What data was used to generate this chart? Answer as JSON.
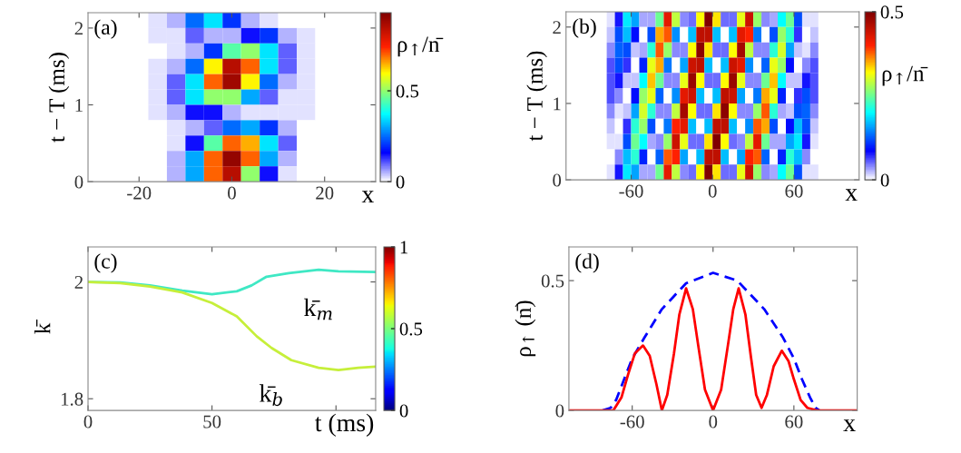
{
  "chart_data": [
    {
      "type": "heatmap",
      "annotations": [
        "(a)"
      ],
      "xlabel": "x",
      "ylabel": "t − T (ms)",
      "clabel": "ρ$_{↑}$/n̄",
      "x": [
        -28,
        -24,
        -20,
        -16,
        -12,
        -8,
        -4,
        0,
        4,
        8,
        12,
        16,
        20,
        24,
        28
      ],
      "y": [
        2.1,
        1.9,
        1.7,
        1.5,
        1.3,
        1.1,
        0.9,
        0.7,
        0.5,
        0.3,
        0.1
      ],
      "cells": [
        [
          0,
          0,
          0,
          0.02,
          0.05,
          0.25,
          0.35,
          0.2,
          0.05,
          0.02,
          0,
          0,
          0,
          0,
          0
        ],
        [
          0,
          0,
          0,
          0.02,
          0.02,
          0.1,
          0.05,
          0.05,
          0.15,
          0.2,
          0.05,
          0.02,
          0,
          0,
          0
        ],
        [
          0,
          0,
          0,
          0,
          0.02,
          0.05,
          0.2,
          0.45,
          0.5,
          0.35,
          0.1,
          0.02,
          0,
          0,
          0
        ],
        [
          0,
          0,
          0,
          0.02,
          0.05,
          0.25,
          0.6,
          0.85,
          0.7,
          0.35,
          0.1,
          0.02,
          0,
          0,
          0
        ],
        [
          0,
          0,
          0,
          0.02,
          0.1,
          0.35,
          0.7,
          0.88,
          0.6,
          0.25,
          0.05,
          0.02,
          0,
          0,
          0
        ],
        [
          0,
          0,
          0,
          0.02,
          0.1,
          0.35,
          0.5,
          0.5,
          0.3,
          0.1,
          0.02,
          0.02,
          0,
          0,
          0
        ],
        [
          0,
          0,
          0,
          0.02,
          0.05,
          0.15,
          0.15,
          0.05,
          0.02,
          0.02,
          0.02,
          0.02,
          0,
          0,
          0
        ],
        [
          0,
          0,
          0,
          0,
          0.02,
          0.05,
          0.1,
          0.25,
          0.3,
          0.2,
          0.05,
          0,
          0,
          0,
          0
        ],
        [
          0,
          0,
          0,
          0,
          0.02,
          0.15,
          0.45,
          0.7,
          0.65,
          0.35,
          0.1,
          0,
          0,
          0,
          0
        ],
        [
          0,
          0,
          0,
          0,
          0.05,
          0.3,
          0.7,
          0.9,
          0.7,
          0.3,
          0.05,
          0,
          0,
          0,
          0
        ],
        [
          0,
          0,
          0,
          0,
          0.05,
          0.3,
          0.7,
          0.85,
          0.5,
          0.15,
          0.02,
          0,
          0,
          0,
          0
        ]
      ],
      "xlim": [
        -31,
        31
      ],
      "xticks": [
        -20,
        0,
        20
      ],
      "ylim": [
        0,
        2.2
      ],
      "yticks": [
        0,
        1,
        2
      ],
      "clim": [
        0,
        0.93
      ],
      "cticks": [
        0,
        0.5
      ]
    },
    {
      "type": "heatmap",
      "annotations": [
        "(b)"
      ],
      "xlabel": "x",
      "ylabel": "t − T (ms)",
      "clabel": "ρ$_{↑}$/n̄",
      "x": [
        -105,
        -99,
        -93,
        -87,
        -81,
        -75,
        -69,
        -63,
        -57,
        -51,
        -45,
        -39,
        -33,
        -27,
        -21,
        -15,
        -9,
        -3,
        3,
        9,
        15,
        21,
        27,
        33,
        39,
        45,
        51,
        57,
        63,
        69,
        75,
        81,
        87,
        93,
        99,
        105
      ],
      "y": [
        2.1,
        1.9,
        1.7,
        1.5,
        1.3,
        1.1,
        0.9,
        0.7,
        0.5,
        0.3,
        0.1
      ],
      "cells": [
        [
          0,
          0,
          0,
          0,
          0,
          0.01,
          0.08,
          0.19,
          0.16,
          0.03,
          0.03,
          0.25,
          0.42,
          0.29,
          0.04,
          0.05,
          0.32,
          0.5,
          0.33,
          0.05,
          0.05,
          0.31,
          0.44,
          0.27,
          0.04,
          0.03,
          0.2,
          0.25,
          0.12,
          0.01,
          0.01,
          0,
          0,
          0,
          0,
          0
        ],
        [
          0,
          0,
          0,
          0,
          0,
          0.02,
          0.12,
          0.17,
          0.09,
          0,
          0.12,
          0.35,
          0.38,
          0.15,
          0,
          0.17,
          0.45,
          0.45,
          0.17,
          0,
          0.17,
          0.42,
          0.4,
          0.14,
          0,
          0.12,
          0.27,
          0.22,
          0.07,
          0,
          0.02,
          0,
          0,
          0,
          0,
          0
        ],
        [
          0,
          0,
          0,
          0,
          0,
          0.04,
          0.13,
          0.12,
          0.02,
          0.03,
          0.22,
          0.38,
          0.27,
          0.04,
          0.04,
          0.32,
          0.49,
          0.33,
          0.05,
          0.05,
          0.32,
          0.47,
          0.29,
          0.04,
          0.04,
          0.22,
          0.3,
          0.16,
          0.02,
          0.01,
          0.04,
          0,
          0,
          0,
          0,
          0
        ],
        [
          0,
          0,
          0,
          0,
          0,
          0.06,
          0.12,
          0.07,
          0,
          0.1,
          0.31,
          0.35,
          0.14,
          0,
          0.16,
          0.44,
          0.45,
          0.17,
          0,
          0.17,
          0.44,
          0.42,
          0.15,
          0,
          0.13,
          0.31,
          0.27,
          0.09,
          0,
          0.04,
          0.06,
          0,
          0,
          0,
          0,
          0
        ],
        [
          0,
          0,
          0,
          0,
          0,
          0.06,
          0.08,
          0.02,
          0.02,
          0.2,
          0.34,
          0.25,
          0.04,
          0.04,
          0.31,
          0.48,
          0.32,
          0.05,
          0.05,
          0.32,
          0.48,
          0.31,
          0.04,
          0.04,
          0.25,
          0.34,
          0.2,
          0.02,
          0.02,
          0.08,
          0.06,
          0,
          0,
          0,
          0,
          0
        ],
        [
          0,
          0,
          0,
          0,
          0,
          0.06,
          0.04,
          0,
          0.09,
          0.27,
          0.31,
          0.13,
          0,
          0.15,
          0.42,
          0.44,
          0.17,
          0,
          0.17,
          0.45,
          0.44,
          0.16,
          0,
          0.14,
          0.35,
          0.31,
          0.1,
          0,
          0.07,
          0.12,
          0.06,
          0,
          0,
          0,
          0,
          0
        ],
        [
          0,
          0,
          0,
          0,
          0,
          0.04,
          0.01,
          0.02,
          0.16,
          0.3,
          0.22,
          0.04,
          0.04,
          0.29,
          0.47,
          0.32,
          0.05,
          0.05,
          0.33,
          0.49,
          0.32,
          0.04,
          0.04,
          0.27,
          0.38,
          0.22,
          0.03,
          0.02,
          0.12,
          0.13,
          0.04,
          0,
          0,
          0,
          0,
          0
        ],
        [
          0,
          0,
          0,
          0,
          0,
          0.02,
          0,
          0.07,
          0.22,
          0.27,
          0.12,
          0,
          0.14,
          0.4,
          0.42,
          0.17,
          0,
          0.17,
          0.45,
          0.45,
          0.17,
          0,
          0.15,
          0.38,
          0.35,
          0.12,
          0,
          0.09,
          0.17,
          0.12,
          0.02,
          0,
          0,
          0,
          0,
          0
        ],
        [
          0,
          0,
          0,
          0,
          0,
          0.01,
          0.01,
          0.12,
          0.25,
          0.2,
          0.03,
          0.04,
          0.27,
          0.44,
          0.31,
          0.05,
          0.05,
          0.33,
          0.5,
          0.32,
          0.05,
          0.04,
          0.29,
          0.42,
          0.25,
          0.03,
          0.03,
          0.16,
          0.19,
          0.08,
          0.01,
          0,
          0,
          0,
          0,
          0
        ],
        [
          0,
          0,
          0,
          0,
          0,
          0,
          0.04,
          0.17,
          0.22,
          0.1,
          0,
          0.13,
          0.38,
          0.4,
          0.16,
          0,
          0.17,
          0.45,
          0.45,
          0.17,
          0,
          0.16,
          0.4,
          0.38,
          0.13,
          0,
          0.1,
          0.22,
          0.17,
          0.04,
          0,
          0,
          0,
          0,
          0,
          0
        ],
        [
          0,
          0,
          0,
          0,
          0,
          0.01,
          0.08,
          0.19,
          0.16,
          0.03,
          0.03,
          0.25,
          0.42,
          0.29,
          0.04,
          0.05,
          0.32,
          0.5,
          0.33,
          0.05,
          0.05,
          0.31,
          0.44,
          0.27,
          0.04,
          0.03,
          0.2,
          0.25,
          0.12,
          0.01,
          0.01,
          0,
          0,
          0,
          0,
          0
        ]
      ],
      "xlim": [
        -108,
        108
      ],
      "xticks": [
        -60,
        0,
        60
      ],
      "ylim": [
        0,
        2.2
      ],
      "yticks": [
        0,
        1,
        2
      ],
      "clim": [
        0,
        0.5
      ],
      "cticks": [
        0,
        0.5
      ]
    },
    {
      "type": "line",
      "xlabel": "t (ms)",
      "ylabel": "k̄",
      "annotations": [
        "(c)"
      ],
      "series": [
        {
          "name": "k̄$_{m}$",
          "color": "#3fe8c4",
          "x": [
            0,
            13,
            25,
            38,
            50,
            60,
            66,
            72,
            81,
            93,
            101,
            116
          ],
          "values": [
            2.0,
            1.999,
            1.994,
            1.985,
            1.979,
            1.984,
            1.994,
            2.009,
            2.015,
            2.021,
            2.018,
            2.017
          ]
        },
        {
          "name": "k̄$_{b}$",
          "color": "#c6ef3a",
          "x": [
            0,
            13,
            25,
            38,
            50,
            60,
            68,
            74,
            82,
            93,
            101,
            109,
            116
          ],
          "values": [
            2.0,
            1.998,
            1.992,
            1.982,
            1.964,
            1.941,
            1.907,
            1.887,
            1.866,
            1.853,
            1.849,
            1.853,
            1.855
          ]
        }
      ],
      "xlim": [
        0,
        116
      ],
      "xticks": [
        0,
        50,
        {
          "value": 100,
          "label": null
        }
      ],
      "ylim": [
        1.78,
        2.06
      ],
      "yticks": [
        1.8,
        2
      ],
      "clim": [
        0,
        1
      ],
      "cticks": [
        0,
        0.5,
        1
      ]
    },
    {
      "type": "line",
      "xlabel": "x",
      "ylabel": "ρ$_{↑}$ (n̄)",
      "annotations": [
        "(d)"
      ],
      "series": [
        {
          "color": "#0000ff",
          "line_style": "dashed",
          "x": [
            -82,
            -76,
            -72,
            -66,
            -60,
            -51,
            -38,
            -20,
            0,
            18,
            38,
            52,
            60,
            66,
            72,
            76,
            79
          ],
          "values": [
            0,
            0.01,
            0.04,
            0.12,
            0.2,
            0.28,
            0.39,
            0.49,
            0.53,
            0.5,
            0.39,
            0.28,
            0.2,
            0.12,
            0.05,
            0.01,
            0
          ]
        },
        {
          "color": "#ff0000",
          "line_style": "solid",
          "x": [
            -107,
            -74,
            -68,
            -63,
            -58,
            -52,
            -47,
            -42,
            -38,
            -34,
            -29,
            -25,
            -20,
            -15,
            -11,
            -6,
            0,
            6,
            11,
            15,
            19,
            24,
            28,
            32,
            36,
            40,
            45,
            51,
            56,
            60,
            65,
            70,
            77,
            107
          ],
          "values": [
            0,
            0,
            0.05,
            0.14,
            0.22,
            0.25,
            0.21,
            0.1,
            0,
            0.06,
            0.22,
            0.37,
            0.47,
            0.39,
            0.25,
            0.08,
            0,
            0.08,
            0.25,
            0.39,
            0.47,
            0.37,
            0.21,
            0.06,
            0.01,
            0.06,
            0.17,
            0.23,
            0.19,
            0.12,
            0.04,
            0.01,
            0,
            0
          ]
        }
      ],
      "xlim": [
        -107,
        107
      ],
      "xticks": [
        -60,
        0,
        60
      ],
      "ylim": [
        0,
        0.63
      ],
      "yticks": [
        0,
        0.5
      ]
    }
  ]
}
